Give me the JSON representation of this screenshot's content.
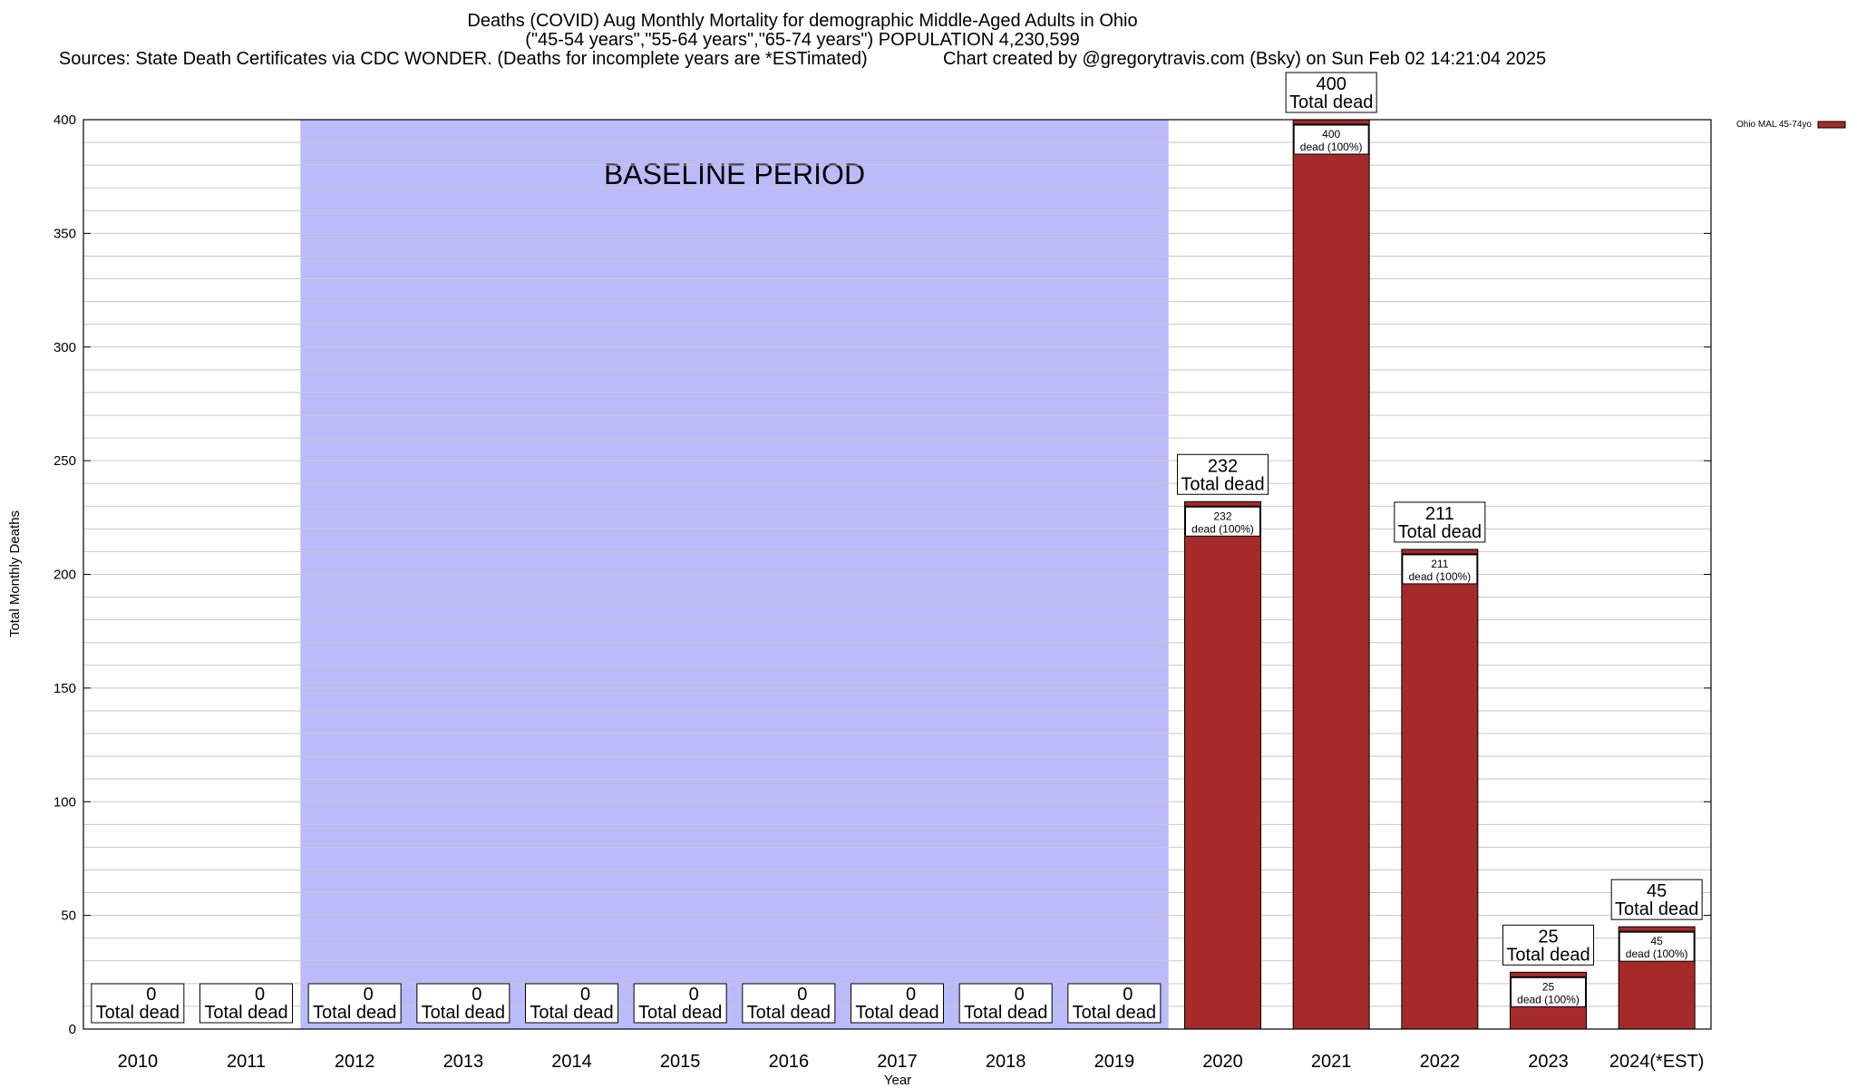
{
  "chart_data": {
    "type": "bar",
    "title_lines": [
      "Deaths (COVID) Aug Monthly Mortality for demographic Middle-Aged Adults in Ohio",
      "(\"45-54 years\",\"55-64 years\",\"65-74 years\") POPULATION 4,230,599",
      "Sources: State Death Certificates via CDC WONDER. (Deaths for incomplete years are *ESTimated)               Chart created by @gregorytravis.com (Bsky) on Sun Feb 02 14:21:04 2025"
    ],
    "xlabel": "Year",
    "ylabel": "Total Monthly Deaths",
    "ylim": [
      0,
      400
    ],
    "yticks": [
      0,
      50,
      100,
      150,
      200,
      250,
      300,
      350,
      400
    ],
    "categories": [
      "2010",
      "2011",
      "2012",
      "2013",
      "2014",
      "2015",
      "2016",
      "2017",
      "2018",
      "2019",
      "2020",
      "2021",
      "2022",
      "2023",
      "2024(*EST)"
    ],
    "series": [
      {
        "name": "Ohio MAL 45-74yo",
        "color": "#a52a2a",
        "values": [
          0,
          0,
          0,
          0,
          0,
          0,
          0,
          0,
          0,
          0,
          232,
          400,
          211,
          25,
          45
        ]
      }
    ],
    "total_label_word": "Total dead",
    "inner_label_suffix": "dead (100%)",
    "baseline": {
      "label": "BASELINE PERIOD",
      "from": "2012",
      "to": "2019",
      "color": "#bbbbfa"
    },
    "grid": true,
    "legend_position": "top-right"
  }
}
